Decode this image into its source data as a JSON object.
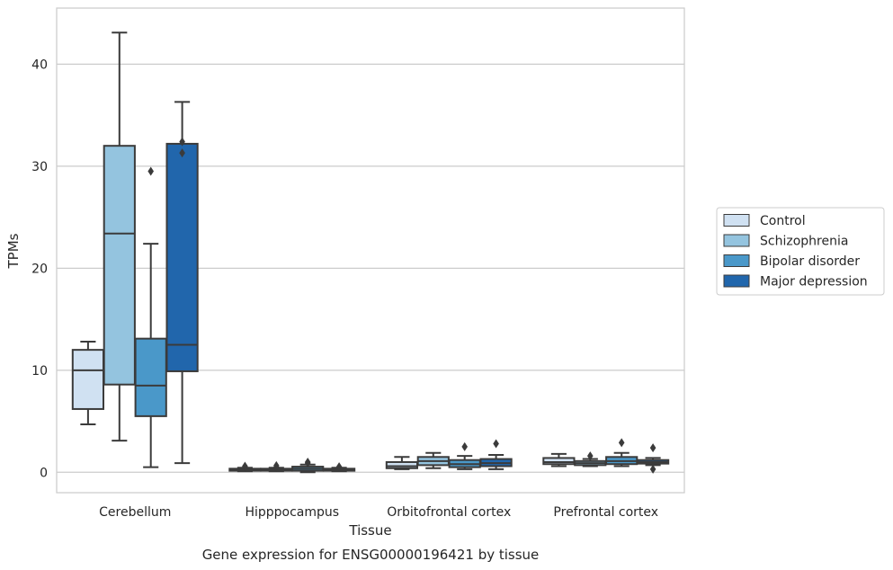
{
  "chart_data": {
    "type": "boxplot",
    "title": "",
    "caption": "Gene expression for ENSG00000196421 by tissue",
    "xlabel": "Tissue",
    "ylabel": "TPMs",
    "ylim": [
      -2,
      45.5
    ],
    "yticks": [
      0,
      10,
      20,
      30,
      40
    ],
    "grid": "horizontal",
    "legend_position": "right",
    "categories": [
      "Cerebellum",
      "Hipppocampus",
      "Orbitofrontal cortex",
      "Prefrontal cortex"
    ],
    "series": [
      {
        "name": "Control",
        "color": "#d0e1f2",
        "boxes": [
          {
            "whislo": 4.7,
            "q1": 6.2,
            "med": 10.0,
            "q3": 12.0,
            "whishi": 12.8,
            "fliers": []
          },
          {
            "whislo": 0.1,
            "q1": 0.15,
            "med": 0.25,
            "q3": 0.35,
            "whishi": 0.45,
            "fliers": [
              0.5,
              0.6
            ]
          },
          {
            "whislo": 0.3,
            "q1": 0.4,
            "med": 0.6,
            "q3": 1.0,
            "whishi": 1.5,
            "fliers": []
          },
          {
            "whislo": 0.6,
            "q1": 0.8,
            "med": 1.0,
            "q3": 1.4,
            "whishi": 1.8,
            "fliers": []
          }
        ]
      },
      {
        "name": "Schizophrenia",
        "color": "#94c4df",
        "boxes": [
          {
            "whislo": 3.1,
            "q1": 8.6,
            "med": 23.4,
            "q3": 32.0,
            "whishi": 43.1,
            "fliers": []
          },
          {
            "whislo": 0.1,
            "q1": 0.15,
            "med": 0.25,
            "q3": 0.35,
            "whishi": 0.45,
            "fliers": [
              0.5,
              0.65
            ]
          },
          {
            "whislo": 0.4,
            "q1": 0.7,
            "med": 1.1,
            "q3": 1.5,
            "whishi": 1.9,
            "fliers": []
          },
          {
            "whislo": 0.6,
            "q1": 0.7,
            "med": 0.9,
            "q3": 1.1,
            "whishi": 1.3,
            "fliers": [
              1.6
            ]
          }
        ]
      },
      {
        "name": "Bipolar disorder",
        "color": "#4a98c9",
        "boxes": [
          {
            "whislo": 0.5,
            "q1": 5.5,
            "med": 8.5,
            "q3": 13.1,
            "whishi": 22.4,
            "fliers": [
              29.5
            ]
          },
          {
            "whislo": 0.0,
            "q1": 0.15,
            "med": 0.35,
            "q3": 0.55,
            "whishi": 0.75,
            "fliers": [
              0.9,
              1.0
            ]
          },
          {
            "whislo": 0.3,
            "q1": 0.5,
            "med": 0.8,
            "q3": 1.2,
            "whishi": 1.6,
            "fliers": [
              2.5
            ]
          },
          {
            "whislo": 0.6,
            "q1": 0.8,
            "med": 1.1,
            "q3": 1.5,
            "whishi": 1.9,
            "fliers": [
              2.9
            ]
          }
        ]
      },
      {
        "name": "Major depression",
        "color": "#2166ac",
        "boxes": [
          {
            "whislo": 0.9,
            "q1": 9.9,
            "med": 12.5,
            "q3": 32.2,
            "whishi": 36.3,
            "fliers": [
              31.3,
              32.4
            ]
          },
          {
            "whislo": 0.1,
            "q1": 0.15,
            "med": 0.25,
            "q3": 0.35,
            "whishi": 0.45,
            "fliers": [
              0.55
            ]
          },
          {
            "whislo": 0.3,
            "q1": 0.6,
            "med": 0.9,
            "q3": 1.3,
            "whishi": 1.7,
            "fliers": [
              2.8
            ]
          },
          {
            "whislo": 0.7,
            "q1": 0.85,
            "med": 1.0,
            "q3": 1.2,
            "whishi": 1.4,
            "fliers": [
              0.3,
              2.4
            ]
          }
        ]
      }
    ]
  }
}
